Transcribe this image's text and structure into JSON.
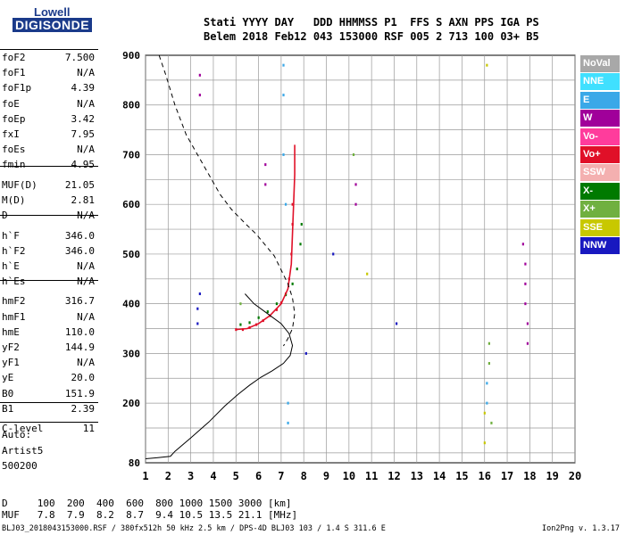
{
  "logo": {
    "brand": "Lowell",
    "product": "DIGISONDE"
  },
  "header": {
    "labels": "Stati YYYY DAY   DDD HHMMSS P1  FFS S AXN PPS IGA PS",
    "values": "Belem 2018 Feb12 043 153000 RSF 005 2 713 100 03+ B5"
  },
  "params": [
    {
      "name": "foF2",
      "value": "7.500"
    },
    {
      "name": "foF1",
      "value": "N/A"
    },
    {
      "name": "foF1p",
      "value": "4.39"
    },
    {
      "name": "foE",
      "value": "N/A"
    },
    {
      "name": "foEp",
      "value": "3.42"
    },
    {
      "name": "fxI",
      "value": "7.95"
    },
    {
      "name": "foEs",
      "value": "N/A"
    },
    {
      "name": "fmin",
      "value": "4.95"
    },
    {
      "name": "MUF(D)",
      "value": "21.05"
    },
    {
      "name": "M(D)",
      "value": "2.81"
    },
    {
      "name": "D",
      "value": "N/A"
    },
    {
      "name": "h`F",
      "value": "346.0"
    },
    {
      "name": "h`F2",
      "value": "346.0"
    },
    {
      "name": "h`E",
      "value": "N/A"
    },
    {
      "name": "h`Es",
      "value": "N/A"
    },
    {
      "name": "hmF2",
      "value": "316.7"
    },
    {
      "name": "hmF1",
      "value": "N/A"
    },
    {
      "name": "hmE",
      "value": "110.0"
    },
    {
      "name": "yF2",
      "value": "144.9"
    },
    {
      "name": "yF1",
      "value": "N/A"
    },
    {
      "name": "yE",
      "value": "20.0"
    },
    {
      "name": "B0",
      "value": "151.9"
    },
    {
      "name": "B1",
      "value": "2.39"
    },
    {
      "name": "C-level",
      "value": "11"
    }
  ],
  "auto": {
    "label": "Auto:",
    "artist": "Artist5",
    "version": "500200"
  },
  "d_row": "D     100  200  400  600  800 1000 1500 3000 [km]",
  "muf_row": "MUF   7.8  7.9  8.2  8.7  9.4 10.5 13.5 21.1 [MHz]",
  "footer": "BLJ03_2018043153000.RSF / 380fx512h 50 kHz 2.5 km / DPS-4D BLJ03 103 / 1.4 S 311.6 E",
  "footer_right": "Ion2Png v. 1.3.17",
  "legend": [
    {
      "label": "NoVal",
      "color": "#a8a8a8"
    },
    {
      "label": "NNE",
      "color": "#40e0ff"
    },
    {
      "label": "E",
      "color": "#3aa8e8"
    },
    {
      "label": "W",
      "color": "#a0009a"
    },
    {
      "label": "Vo-",
      "color": "#ff3c9c"
    },
    {
      "label": "Vo+",
      "color": "#e01028"
    },
    {
      "label": "SSW",
      "color": "#f4b0b0"
    },
    {
      "label": "X-",
      "color": "#007a00"
    },
    {
      "label": "X+",
      "color": "#70b040"
    },
    {
      "label": "SSE",
      "color": "#c8c800"
    },
    {
      "label": "NNW",
      "color": "#1818c0"
    }
  ],
  "chart_data": {
    "type": "scatter",
    "xlim": [
      1,
      20
    ],
    "ylim": [
      80,
      900
    ],
    "x_ticks": [
      "1",
      "2",
      "3",
      "4",
      "5",
      "6",
      "7",
      "8",
      "9",
      "10",
      "11",
      "12",
      "13",
      "14",
      "15",
      "16",
      "17",
      "18",
      "19",
      "20"
    ],
    "y_ticks": [
      "80",
      "200",
      "300",
      "400",
      "500",
      "600",
      "700",
      "800",
      "900"
    ],
    "grid": true,
    "series": [
      {
        "name": "Vo+",
        "color": "#e01028",
        "points": [
          [
            5.0,
            348
          ],
          [
            5.3,
            348
          ],
          [
            5.6,
            352
          ],
          [
            5.9,
            358
          ],
          [
            6.2,
            366
          ],
          [
            6.5,
            376
          ],
          [
            6.8,
            388
          ],
          [
            7.0,
            402
          ],
          [
            7.2,
            420
          ],
          [
            7.35,
            450
          ],
          [
            7.45,
            500
          ],
          [
            7.5,
            560
          ],
          [
            7.5,
            600
          ]
        ]
      },
      {
        "name": "X-",
        "color": "#007a00",
        "points": [
          [
            5.2,
            358
          ],
          [
            5.6,
            362
          ],
          [
            6.0,
            372
          ],
          [
            6.4,
            384
          ],
          [
            6.8,
            400
          ],
          [
            7.2,
            418
          ],
          [
            7.5,
            440
          ],
          [
            7.7,
            470
          ],
          [
            7.85,
            520
          ],
          [
            7.9,
            560
          ]
        ]
      },
      {
        "name": "W",
        "color": "#a0009a",
        "points": [
          [
            3.4,
            820
          ],
          [
            3.4,
            860
          ],
          [
            6.3,
            640
          ],
          [
            6.3,
            680
          ],
          [
            10.3,
            640
          ],
          [
            10.3,
            600
          ],
          [
            17.7,
            520
          ],
          [
            17.8,
            480
          ],
          [
            17.8,
            440
          ],
          [
            17.8,
            400
          ],
          [
            17.9,
            360
          ],
          [
            17.9,
            320
          ]
        ]
      },
      {
        "name": "E",
        "color": "#3aa8e8",
        "points": [
          [
            7.1,
            880
          ],
          [
            7.1,
            820
          ],
          [
            7.1,
            700
          ],
          [
            7.2,
            600
          ],
          [
            7.3,
            200
          ],
          [
            7.3,
            160
          ],
          [
            16.1,
            200
          ],
          [
            16.1,
            240
          ]
        ]
      },
      {
        "name": "X+",
        "color": "#70b040",
        "points": [
          [
            16.2,
            320
          ],
          [
            16.2,
            280
          ],
          [
            16.3,
            160
          ],
          [
            10.2,
            700
          ],
          [
            5.2,
            400
          ]
        ]
      },
      {
        "name": "NNW",
        "color": "#1818c0",
        "points": [
          [
            3.3,
            390
          ],
          [
            3.3,
            360
          ],
          [
            3.4,
            420
          ],
          [
            8.1,
            300
          ],
          [
            9.3,
            500
          ],
          [
            12.1,
            360
          ]
        ]
      },
      {
        "name": "SSE",
        "color": "#c8c800",
        "points": [
          [
            16.0,
            120
          ],
          [
            16.0,
            180
          ],
          [
            16.1,
            880
          ],
          [
            10.8,
            460
          ]
        ]
      }
    ],
    "profile_solid": [
      [
        0.0,
        88
      ],
      [
        1.0,
        88
      ],
      [
        1.5,
        90
      ],
      [
        2.1,
        93
      ],
      [
        2.3,
        103
      ],
      [
        3.0,
        130
      ],
      [
        3.8,
        162
      ],
      [
        4.5,
        194
      ],
      [
        5.1,
        218
      ],
      [
        5.6,
        236
      ],
      [
        6.1,
        252
      ],
      [
        6.6,
        265
      ],
      [
        7.1,
        280
      ],
      [
        7.4,
        296
      ],
      [
        7.5,
        316
      ],
      [
        7.35,
        340
      ],
      [
        7.0,
        360
      ],
      [
        6.4,
        380
      ],
      [
        5.8,
        400
      ],
      [
        5.4,
        420
      ]
    ],
    "profile_dashed": [
      [
        1.6,
        900
      ],
      [
        1.9,
        860
      ],
      [
        2.3,
        800
      ],
      [
        2.8,
        740
      ],
      [
        3.3,
        700
      ],
      [
        3.8,
        660
      ],
      [
        4.3,
        620
      ],
      [
        4.8,
        590
      ],
      [
        5.4,
        562
      ],
      [
        5.9,
        540
      ],
      [
        6.3,
        518
      ],
      [
        6.7,
        496
      ],
      [
        7.0,
        468
      ],
      [
        7.3,
        440
      ],
      [
        7.5,
        412
      ],
      [
        7.6,
        380
      ],
      [
        7.5,
        350
      ],
      [
        7.3,
        330
      ],
      [
        7.1,
        315
      ]
    ],
    "trace_curve": [
      [
        5.0,
        348
      ],
      [
        5.5,
        350
      ],
      [
        6.0,
        360
      ],
      [
        6.5,
        376
      ],
      [
        7.0,
        400
      ],
      [
        7.3,
        430
      ],
      [
        7.45,
        480
      ],
      [
        7.5,
        540
      ],
      [
        7.55,
        600
      ],
      [
        7.6,
        660
      ],
      [
        7.6,
        720
      ]
    ]
  }
}
